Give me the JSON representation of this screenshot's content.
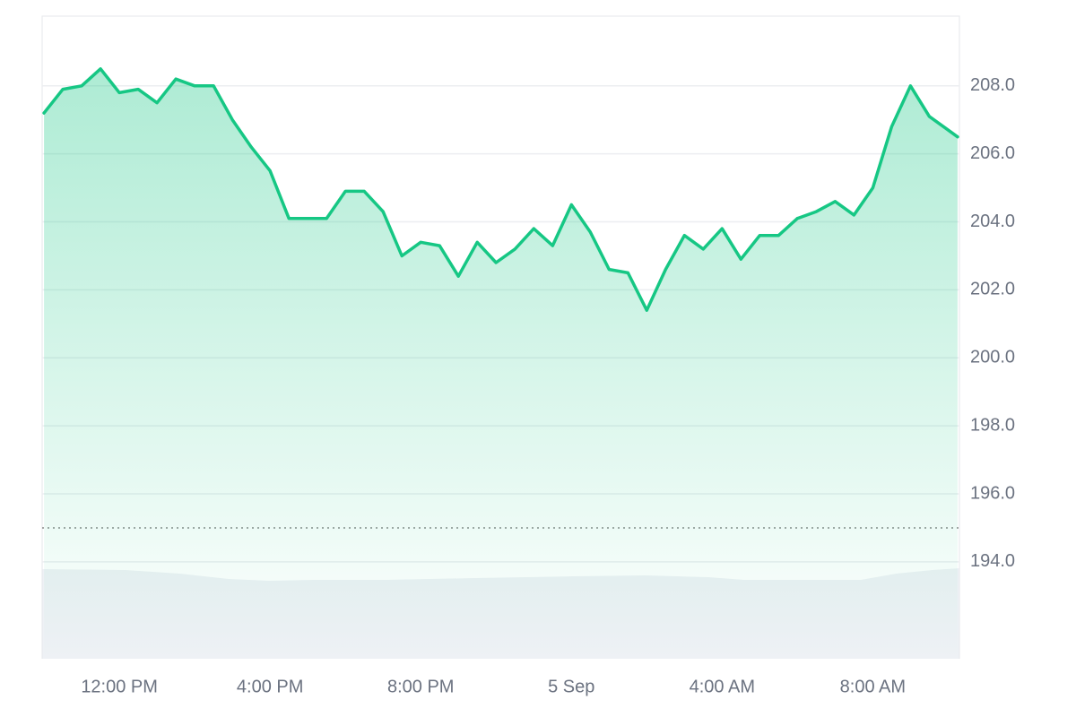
{
  "chart_data": {
    "type": "area",
    "x": [
      10.0,
      10.5,
      11.0,
      11.5,
      12.0,
      12.5,
      13.0,
      13.5,
      14.0,
      14.5,
      15.0,
      15.5,
      16.0,
      16.5,
      17.0,
      17.5,
      18.0,
      18.5,
      19.0,
      19.5,
      20.0,
      20.5,
      21.0,
      21.5,
      22.0,
      22.5,
      23.0,
      23.5,
      24.0,
      24.5,
      25.0,
      25.5,
      26.0,
      26.5,
      27.0,
      27.5,
      28.0,
      28.5,
      29.0,
      29.5,
      30.0,
      30.5,
      31.0,
      31.5,
      32.0,
      32.5,
      33.0,
      33.5,
      34.0,
      34.25
    ],
    "values": [
      207.2,
      207.9,
      208.0,
      208.5,
      207.8,
      207.9,
      207.5,
      208.2,
      208.0,
      208.0,
      207.0,
      206.2,
      205.5,
      204.1,
      204.1,
      204.1,
      204.9,
      204.9,
      204.3,
      203.0,
      203.4,
      203.3,
      202.4,
      203.4,
      202.8,
      203.2,
      203.8,
      203.3,
      204.5,
      203.7,
      202.6,
      202.5,
      201.4,
      202.6,
      203.6,
      203.2,
      203.8,
      202.9,
      203.6,
      203.6,
      204.1,
      204.3,
      204.6,
      204.2,
      205.0,
      206.8,
      208.0,
      207.1,
      206.7,
      206.5
    ],
    "color": "#16c784",
    "baseline": 195.0,
    "xlim": [
      9.95,
      34.3
    ],
    "xticks": [
      {
        "value": 12,
        "label": "12:00 PM"
      },
      {
        "value": 16,
        "label": "4:00 PM"
      },
      {
        "value": 20,
        "label": "8:00 PM"
      },
      {
        "value": 24,
        "label": "5 Sep"
      },
      {
        "value": 28,
        "label": "4:00 AM"
      },
      {
        "value": 32,
        "label": "8:00 AM"
      }
    ],
    "ylim": [
      191.15,
      210.05
    ],
    "yticks": [
      {
        "value": 194,
        "label": "194.0"
      },
      {
        "value": 196,
        "label": "196.0"
      },
      {
        "value": 198,
        "label": "198.0"
      },
      {
        "value": 200,
        "label": "200.0"
      },
      {
        "value": 202,
        "label": "202.0"
      },
      {
        "value": 204,
        "label": "204.0"
      },
      {
        "value": 206,
        "label": "206.0"
      },
      {
        "value": 208,
        "label": "208.0"
      }
    ],
    "grid": true
  }
}
